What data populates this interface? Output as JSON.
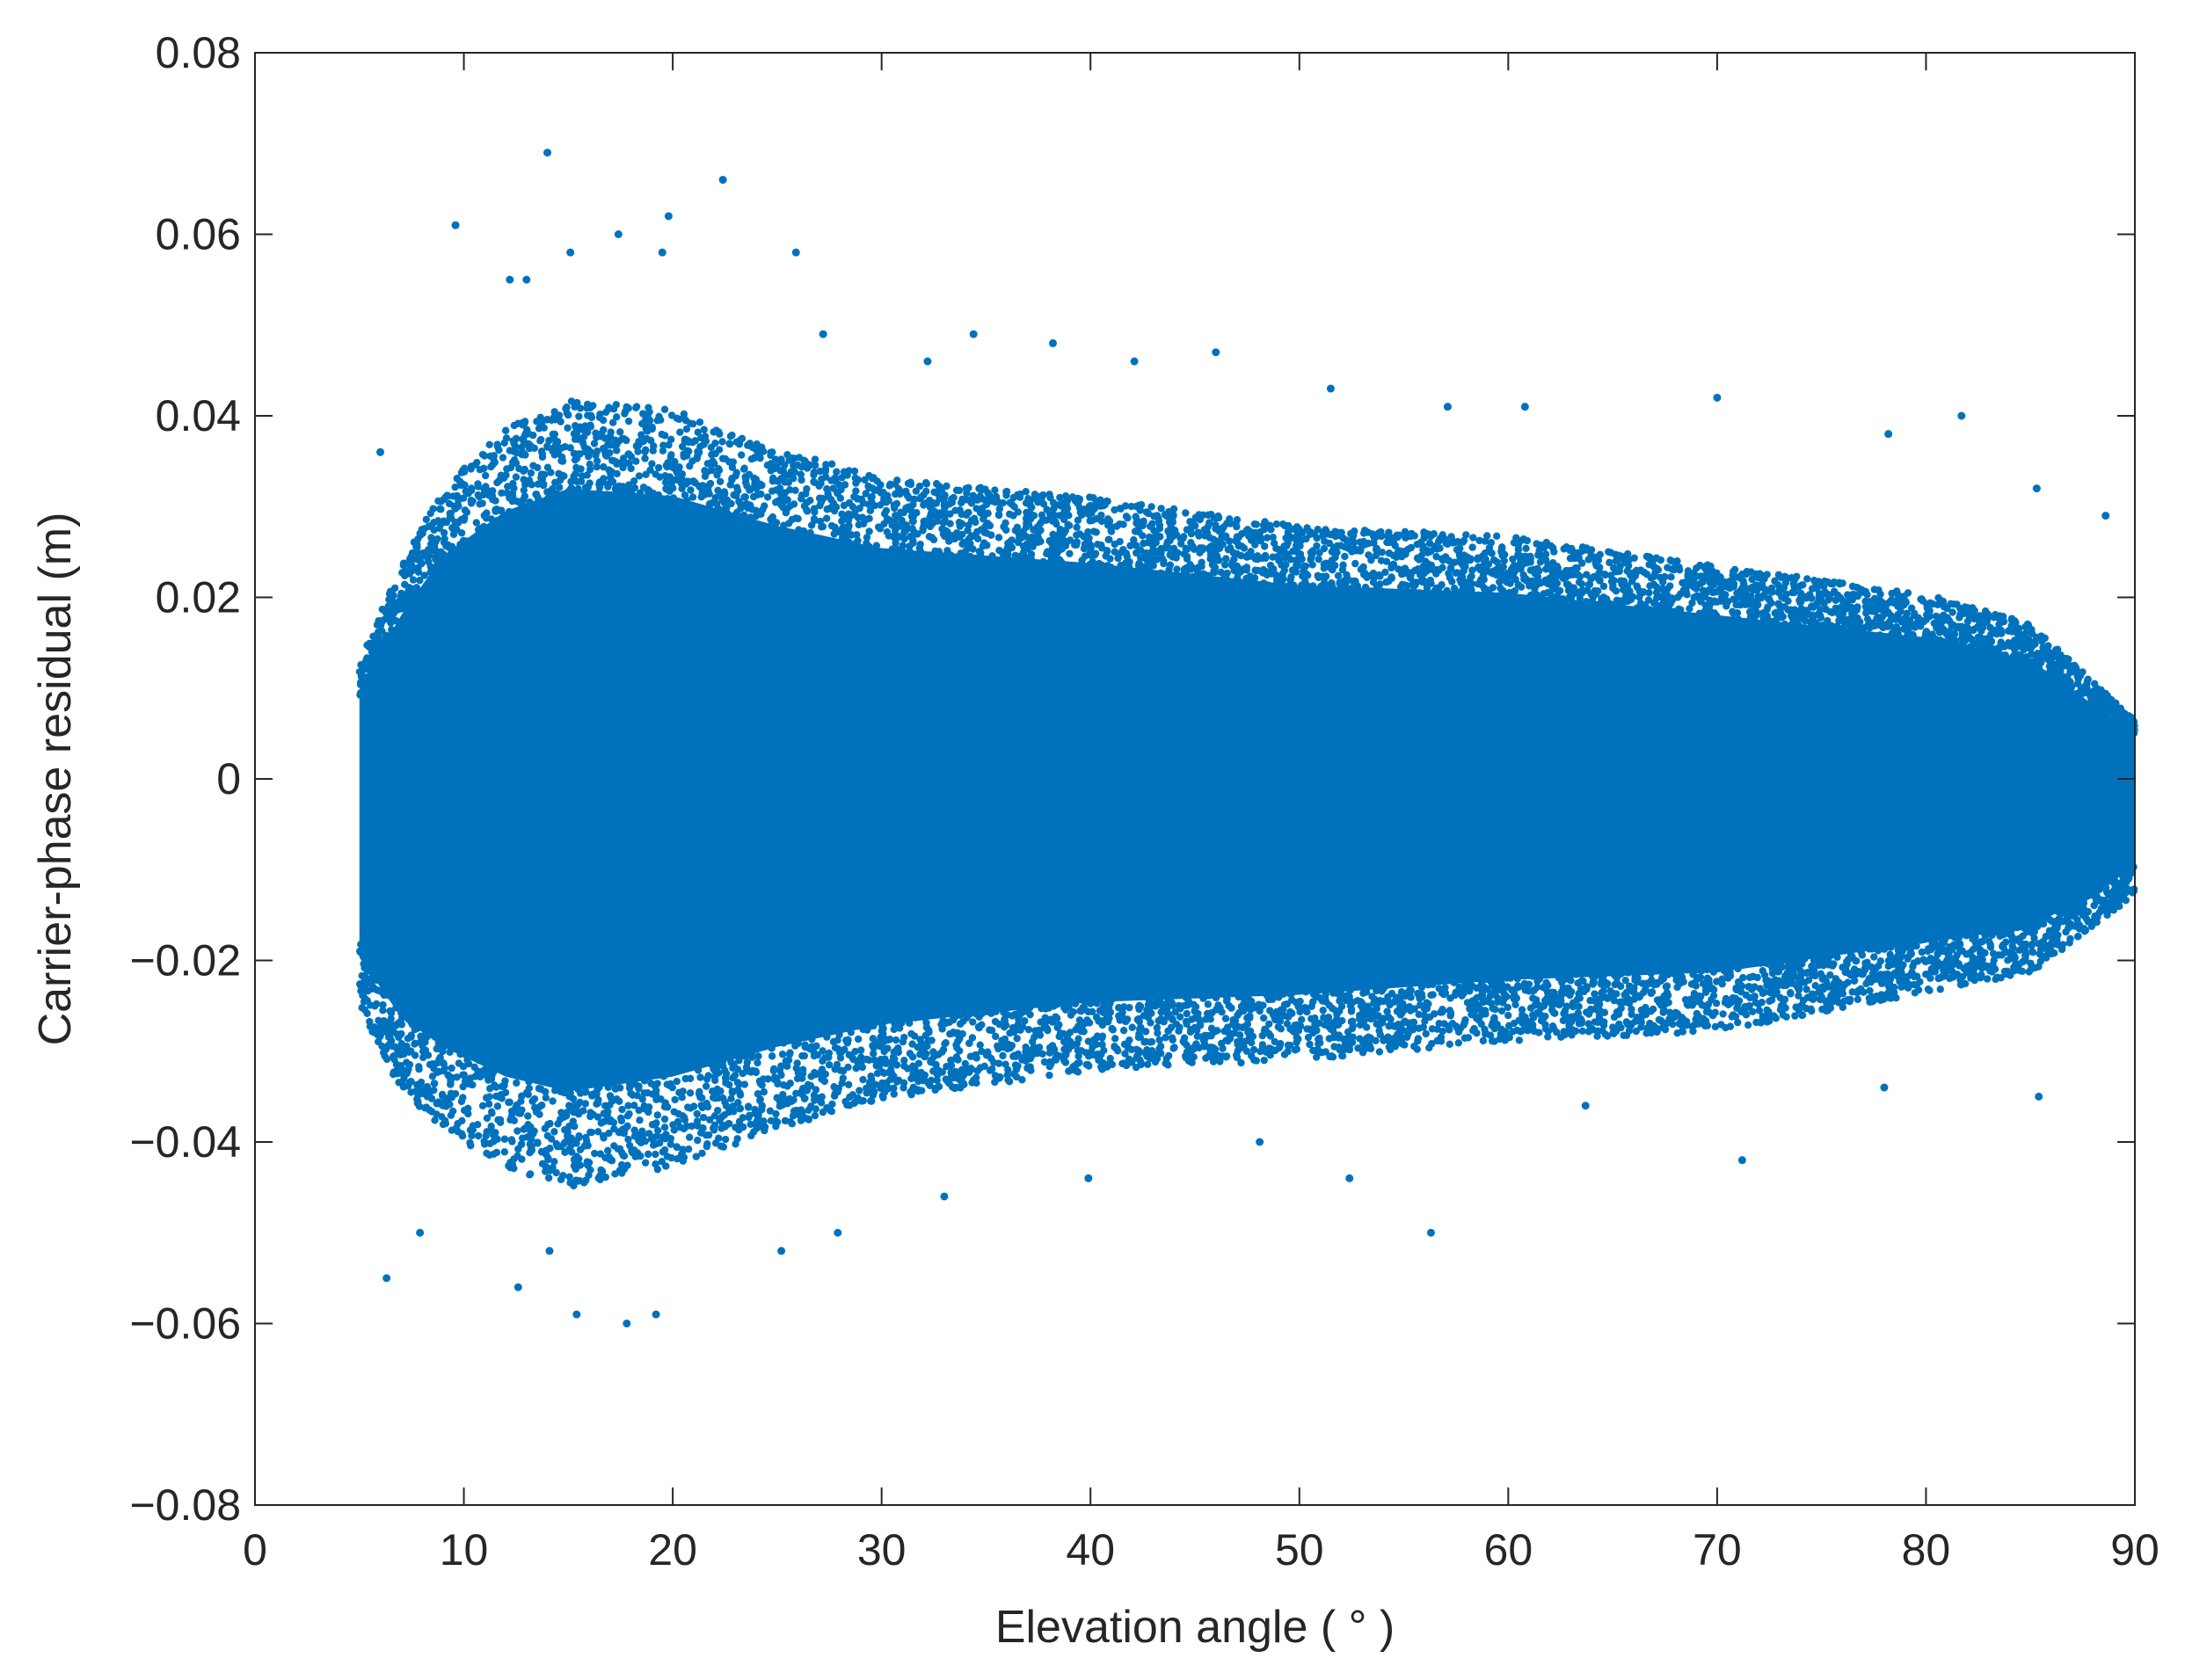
{
  "chart_data": {
    "type": "scatter",
    "title": "",
    "xlabel": "Elevation angle ( ° )",
    "ylabel": "Carrier-phase residual (m)",
    "xlim": [
      0,
      90
    ],
    "ylim": [
      -0.08,
      0.08
    ],
    "x_ticks": [
      0,
      10,
      20,
      30,
      40,
      50,
      60,
      70,
      80,
      90
    ],
    "x_tick_labels": [
      "0",
      "10",
      "20",
      "30",
      "40",
      "50",
      "60",
      "70",
      "80",
      "90"
    ],
    "y_ticks": [
      0.08,
      0.06,
      0.04,
      0.02,
      0,
      -0.02,
      -0.04,
      -0.06,
      -0.08
    ],
    "y_tick_labels": [
      "0.08",
      "0.06",
      "0.04",
      "0.02",
      "0",
      "−0.02",
      "−0.04",
      "−0.06",
      "−0.08"
    ],
    "grid": false,
    "marker_color": "#0072BD",
    "series": [
      {
        "x_range": [
          5,
          90
        ],
        "dense_band": [
          {
            "x": 5,
            "low": -0.024,
            "high": 0.012
          },
          {
            "x": 7,
            "low": -0.032,
            "high": 0.022
          },
          {
            "x": 9,
            "low": -0.036,
            "high": 0.03
          },
          {
            "x": 12,
            "low": -0.04,
            "high": 0.036
          },
          {
            "x": 15,
            "low": -0.042,
            "high": 0.039
          },
          {
            "x": 20,
            "low": -0.04,
            "high": 0.038
          },
          {
            "x": 25,
            "low": -0.036,
            "high": 0.034
          },
          {
            "x": 30,
            "low": -0.033,
            "high": 0.031
          },
          {
            "x": 40,
            "low": -0.03,
            "high": 0.029
          },
          {
            "x": 50,
            "low": -0.029,
            "high": 0.026
          },
          {
            "x": 60,
            "low": -0.027,
            "high": 0.025
          },
          {
            "x": 70,
            "low": -0.026,
            "high": 0.022
          },
          {
            "x": 80,
            "low": -0.022,
            "high": 0.019
          },
          {
            "x": 85,
            "low": -0.02,
            "high": 0.016
          },
          {
            "x": 90,
            "low": -0.012,
            "high": 0.006
          }
        ],
        "outliers": [
          {
            "x": 14.0,
            "y": 0.069
          },
          {
            "x": 22.4,
            "y": 0.066
          },
          {
            "x": 9.6,
            "y": 0.061
          },
          {
            "x": 19.8,
            "y": 0.062
          },
          {
            "x": 17.4,
            "y": 0.06
          },
          {
            "x": 25.9,
            "y": 0.058
          },
          {
            "x": 15.1,
            "y": 0.058
          },
          {
            "x": 19.5,
            "y": 0.058
          },
          {
            "x": 12.2,
            "y": 0.055
          },
          {
            "x": 13.0,
            "y": 0.055
          },
          {
            "x": 27.2,
            "y": 0.049
          },
          {
            "x": 34.4,
            "y": 0.049
          },
          {
            "x": 38.2,
            "y": 0.048
          },
          {
            "x": 46.0,
            "y": 0.047
          },
          {
            "x": 32.2,
            "y": 0.046
          },
          {
            "x": 42.1,
            "y": 0.046
          },
          {
            "x": 51.5,
            "y": 0.043
          },
          {
            "x": 70.0,
            "y": 0.042
          },
          {
            "x": 57.1,
            "y": 0.041
          },
          {
            "x": 60.8,
            "y": 0.041
          },
          {
            "x": 81.7,
            "y": 0.04
          },
          {
            "x": 78.2,
            "y": 0.038
          },
          {
            "x": 6.0,
            "y": 0.036
          },
          {
            "x": 85.3,
            "y": 0.032
          },
          {
            "x": 88.6,
            "y": 0.029
          },
          {
            "x": 6.3,
            "y": -0.055
          },
          {
            "x": 7.9,
            "y": -0.05
          },
          {
            "x": 17.8,
            "y": -0.06
          },
          {
            "x": 19.2,
            "y": -0.059
          },
          {
            "x": 15.4,
            "y": -0.059
          },
          {
            "x": 12.6,
            "y": -0.056
          },
          {
            "x": 14.1,
            "y": -0.052
          },
          {
            "x": 25.2,
            "y": -0.052
          },
          {
            "x": 27.9,
            "y": -0.05
          },
          {
            "x": 56.3,
            "y": -0.05
          },
          {
            "x": 33.0,
            "y": -0.046
          },
          {
            "x": 52.4,
            "y": -0.044
          },
          {
            "x": 39.9,
            "y": -0.044
          },
          {
            "x": 71.2,
            "y": -0.042
          },
          {
            "x": 48.1,
            "y": -0.04
          },
          {
            "x": 85.4,
            "y": -0.035
          },
          {
            "x": 63.7,
            "y": -0.036
          },
          {
            "x": 78.0,
            "y": -0.034
          }
        ]
      }
    ]
  }
}
